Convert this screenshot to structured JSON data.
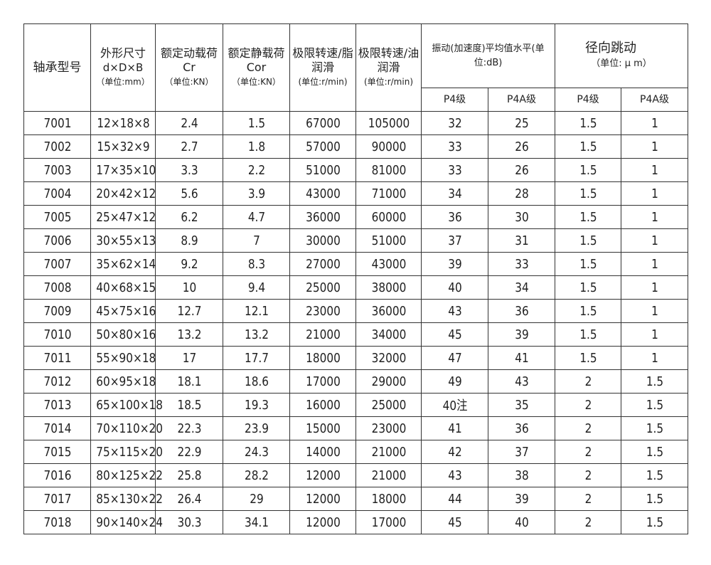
{
  "headers": {
    "model": "轴承型号",
    "size": "外形尺寸",
    "size_dims": "d×D×B",
    "size_unit": "（单位:mm）",
    "cr": "额定动载荷 Cr",
    "cr_unit": "（单位:KN）",
    "cor": "额定静载荷Cor",
    "cor_unit": "（单位:KN）",
    "grease": "极限转速/脂润滑",
    "grease_unit": "(单位:r/min)",
    "oil": "极限转速/油润滑",
    "oil_unit": "(单位:r/min)",
    "vibration": "振动(加速度)平均值水平(单位:dB)",
    "runout": "径向跳动",
    "runout_unit": "（单位: μ m）",
    "p4": "P4级",
    "p4a": "P4A级"
  },
  "rows": [
    [
      "7001",
      "12×18×8",
      "2.4",
      "1.5",
      "67000",
      "105000",
      "32",
      "25",
      "1.5",
      "1"
    ],
    [
      "7002",
      "15×32×9",
      "2.7",
      "1.8",
      "57000",
      "90000",
      "33",
      "26",
      "1.5",
      "1"
    ],
    [
      "7003",
      "17×35×10",
      "3.3",
      "2.2",
      "51000",
      "81000",
      "33",
      "26",
      "1.5",
      "1"
    ],
    [
      "7004",
      "20×42×12",
      "5.6",
      "3.9",
      "43000",
      "71000",
      "34",
      "28",
      "1.5",
      "1"
    ],
    [
      "7005",
      "25×47×12",
      "6.2",
      "4.7",
      "36000",
      "60000",
      "36",
      "30",
      "1.5",
      "1"
    ],
    [
      "7006",
      "30×55×13",
      "8.9",
      "7",
      "30000",
      "51000",
      "37",
      "31",
      "1.5",
      "1"
    ],
    [
      "7007",
      "35×62×14",
      "9.2",
      "8.3",
      "27000",
      "43000",
      "39",
      "33",
      "1.5",
      "1"
    ],
    [
      "7008",
      "40×68×15",
      "10",
      "9.4",
      "25000",
      "38000",
      "40",
      "34",
      "1.5",
      "1"
    ],
    [
      "7009",
      "45×75×16",
      "12.7",
      "12.1",
      "23000",
      "36000",
      "43",
      "36",
      "1.5",
      "1"
    ],
    [
      "7010",
      "50×80×16",
      "13.2",
      "13.2",
      "21000",
      "34000",
      "45",
      "39",
      "1.5",
      "1"
    ],
    [
      "7011",
      "55×90×18",
      "17",
      "17.7",
      "18000",
      "32000",
      "47",
      "41",
      "1.5",
      "1"
    ],
    [
      "7012",
      "60×95×18",
      "18.1",
      "18.6",
      "17000",
      "29000",
      "49",
      "43",
      "2",
      "1.5"
    ],
    [
      "7013",
      "65×100×18",
      "18.5",
      "19.3",
      "16000",
      "25000",
      "40注",
      "35",
      "2",
      "1.5"
    ],
    [
      "7014",
      "70×110×20",
      "22.3",
      "23.9",
      "15000",
      "23000",
      "41",
      "36",
      "2",
      "1.5"
    ],
    [
      "7015",
      "75×115×20",
      "22.9",
      "24.3",
      "14000",
      "21000",
      "42",
      "37",
      "2",
      "1.5"
    ],
    [
      "7016",
      "80×125×22",
      "25.8",
      "28.2",
      "12000",
      "21000",
      "43",
      "38",
      "2",
      "1.5"
    ],
    [
      "7017",
      "85×130×22",
      "26.4",
      "29",
      "12000",
      "18000",
      "44",
      "39",
      "2",
      "1.5"
    ],
    [
      "7018",
      "90×140×24",
      "30.3",
      "34.1",
      "12000",
      "17000",
      "45",
      "40",
      "2",
      "1.5"
    ]
  ]
}
